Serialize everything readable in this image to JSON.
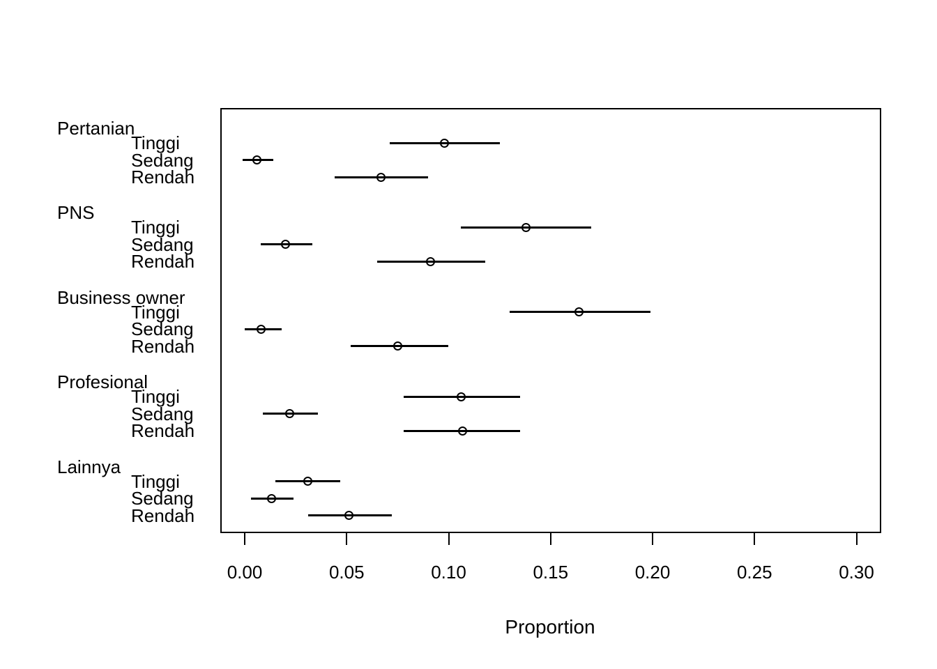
{
  "figure": {
    "background_color": "#ffffff",
    "foreground_color": "#000000"
  },
  "chart_data": {
    "type": "scatter",
    "subtype": "dot-plot-with-confidence-intervals",
    "title": "",
    "xlabel": "Proportion",
    "ylabel": "",
    "xlim": [
      -0.012,
      0.312
    ],
    "grid": false,
    "legend": null,
    "x_tick_values": [
      0.0,
      0.05,
      0.1,
      0.15,
      0.2,
      0.25,
      0.3
    ],
    "x_tick_labels": [
      "0.00",
      "0.05",
      "0.10",
      "0.15",
      "0.20",
      "0.25",
      "0.30"
    ],
    "groups": [
      {
        "label": "Pertanian",
        "items": [
          {
            "label": "Tinggi",
            "value": 0.098,
            "lower": 0.071,
            "upper": 0.125
          },
          {
            "label": "Sedang",
            "value": 0.006,
            "lower": -0.001,
            "upper": 0.014
          },
          {
            "label": "Rendah",
            "value": 0.067,
            "lower": 0.044,
            "upper": 0.09
          }
        ]
      },
      {
        "label": "PNS",
        "items": [
          {
            "label": "Tinggi",
            "value": 0.138,
            "lower": 0.106,
            "upper": 0.17
          },
          {
            "label": "Sedang",
            "value": 0.02,
            "lower": 0.008,
            "upper": 0.033
          },
          {
            "label": "Rendah",
            "value": 0.091,
            "lower": 0.065,
            "upper": 0.118
          }
        ]
      },
      {
        "label": "Business owner",
        "items": [
          {
            "label": "Tinggi",
            "value": 0.164,
            "lower": 0.13,
            "upper": 0.199
          },
          {
            "label": "Sedang",
            "value": 0.008,
            "lower": 0.0,
            "upper": 0.018
          },
          {
            "label": "Rendah",
            "value": 0.075,
            "lower": 0.052,
            "upper": 0.1
          }
        ]
      },
      {
        "label": "Profesional",
        "items": [
          {
            "label": "Tinggi",
            "value": 0.106,
            "lower": 0.078,
            "upper": 0.135
          },
          {
            "label": "Sedang",
            "value": 0.022,
            "lower": 0.009,
            "upper": 0.036
          },
          {
            "label": "Rendah",
            "value": 0.107,
            "lower": 0.078,
            "upper": 0.135
          }
        ]
      },
      {
        "label": "Lainnya",
        "items": [
          {
            "label": "Tinggi",
            "value": 0.031,
            "lower": 0.015,
            "upper": 0.047
          },
          {
            "label": "Sedang",
            "value": 0.013,
            "lower": 0.003,
            "upper": 0.024
          },
          {
            "label": "Rendah",
            "value": 0.051,
            "lower": 0.031,
            "upper": 0.072
          }
        ]
      }
    ]
  }
}
